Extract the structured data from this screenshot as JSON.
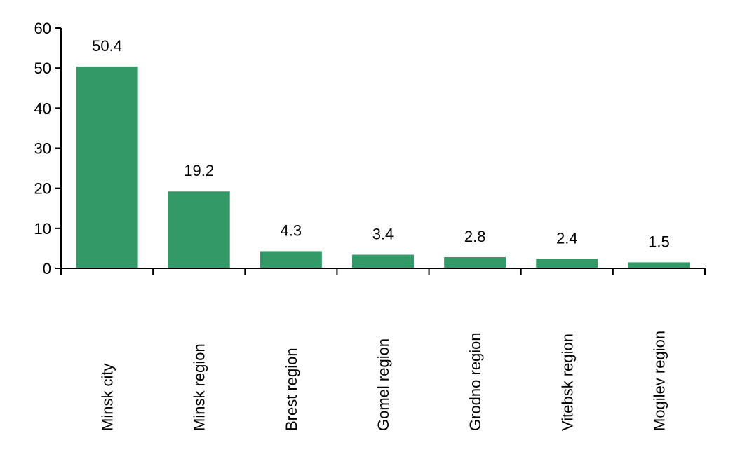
{
  "chart_data": {
    "type": "bar",
    "title": "",
    "xlabel": "",
    "ylabel": "",
    "categories": [
      "Minsk city",
      "Minsk region",
      "Brest region",
      "Gomel region",
      "Grodno region",
      "Vitebsk region",
      "Mogilev region"
    ],
    "values": [
      50.4,
      19.2,
      4.3,
      3.4,
      2.8,
      2.4,
      1.5
    ],
    "data_labels": [
      "50.4",
      "19.2",
      "4.3",
      "3.4",
      "2.8",
      "2.4",
      "1.5"
    ],
    "ylim": [
      0,
      60
    ],
    "yticks": [
      0,
      10,
      20,
      30,
      40,
      50,
      60
    ],
    "ytick_labels": [
      "0",
      "10",
      "20",
      "30",
      "40",
      "50",
      "60"
    ],
    "grid": false,
    "legend": "none",
    "bar_color": "#339966",
    "axis_color": "#000000"
  }
}
